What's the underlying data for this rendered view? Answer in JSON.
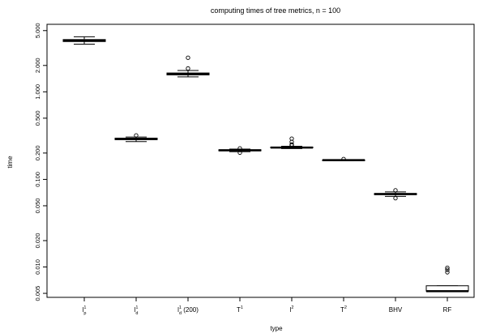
{
  "chart_data": {
    "type": "boxplot",
    "title": "computing times of tree metrics, n = 100",
    "xlabel": "type",
    "ylabel": "time",
    "y_scale": "log",
    "y_ticks": [
      {
        "value": 5.0,
        "label": "5.000"
      },
      {
        "value": 2.0,
        "label": "2.000"
      },
      {
        "value": 1.0,
        "label": "1.000"
      },
      {
        "value": 0.5,
        "label": "0.500"
      },
      {
        "value": 0.2,
        "label": "0.200"
      },
      {
        "value": 0.1,
        "label": "0.100"
      },
      {
        "value": 0.05,
        "label": "0.050"
      },
      {
        "value": 0.02,
        "label": "0.020"
      },
      {
        "value": 0.01,
        "label": "0.010"
      },
      {
        "value": 0.005,
        "label": "0.005"
      }
    ],
    "ylim": [
      0.0045,
      5.9
    ],
    "categories": [
      {
        "base": "l",
        "sup": "1",
        "sub": "p",
        "extra": ""
      },
      {
        "base": "l",
        "sup": "1",
        "sub": "d",
        "extra": ""
      },
      {
        "base": "l",
        "sup": "1",
        "sub": "d",
        "extra": "(200)"
      },
      {
        "base": "T",
        "sup": "1",
        "sub": "",
        "extra": ""
      },
      {
        "base": "l",
        "sup": "2",
        "sub": "",
        "extra": ""
      },
      {
        "base": "T",
        "sup": "2",
        "sub": "",
        "extra": ""
      },
      {
        "base": "BHV",
        "sup": "",
        "sub": "",
        "extra": ""
      },
      {
        "base": "RF",
        "sup": "",
        "sub": "",
        "extra": ""
      }
    ],
    "boxes": [
      {
        "whisker_low": 3.5,
        "q1": 3.75,
        "median": 3.85,
        "q3": 3.95,
        "whisker_high": 4.25,
        "outliers": []
      },
      {
        "whisker_low": 0.27,
        "q1": 0.284,
        "median": 0.29,
        "q3": 0.296,
        "whisker_high": 0.305,
        "outliers": [
          0.318
        ]
      },
      {
        "whisker_low": 1.48,
        "q1": 1.56,
        "median": 1.6,
        "q3": 1.64,
        "whisker_high": 1.75,
        "outliers": [
          1.85,
          2.45
        ]
      },
      {
        "whisker_low": 0.207,
        "q1": 0.212,
        "median": 0.215,
        "q3": 0.218,
        "whisker_high": 0.222,
        "outliers": [
          0.202,
          0.226
        ]
      },
      {
        "whisker_low": 0.225,
        "q1": 0.229,
        "median": 0.231,
        "q3": 0.234,
        "whisker_high": 0.239,
        "outliers": [
          0.244,
          0.251,
          0.268,
          0.292
        ]
      },
      {
        "whisker_low": 0.163,
        "q1": 0.165,
        "median": 0.166,
        "q3": 0.167,
        "whisker_high": 0.168,
        "outliers": [
          0.171
        ]
      },
      {
        "whisker_low": 0.064,
        "q1": 0.067,
        "median": 0.068,
        "q3": 0.069,
        "whisker_high": 0.072,
        "outliers": [
          0.061,
          0.075
        ]
      },
      {
        "whisker_low": 0.0053,
        "q1": 0.0053,
        "median": 0.0053,
        "q3": 0.0061,
        "whisker_high": 0.0061,
        "outliers": [
          0.0087,
          0.0093,
          0.0098
        ]
      }
    ],
    "grid": false,
    "legend": "none"
  }
}
